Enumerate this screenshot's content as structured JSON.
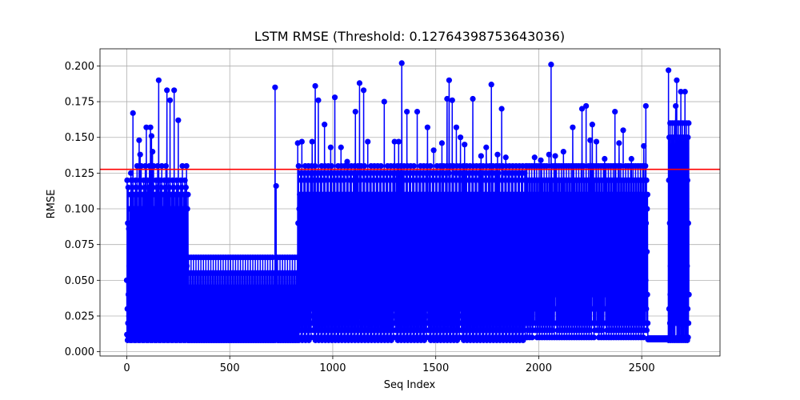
{
  "chart_data": {
    "type": "line",
    "title": "LSTM RMSE (Threshold: 0.12764398753643036)",
    "xlabel": "Seq Index",
    "ylabel": "RMSE",
    "xlim": [
      -130,
      2880
    ],
    "ylim": [
      -0.003,
      0.212
    ],
    "xticks": [
      0,
      500,
      1000,
      1500,
      2000,
      2500
    ],
    "xtick_labels": [
      "0",
      "500",
      "1000",
      "1500",
      "2000",
      "2500"
    ],
    "yticks": [
      0.0,
      0.025,
      0.05,
      0.075,
      0.1,
      0.125,
      0.15,
      0.175,
      0.2
    ],
    "ytick_labels": [
      "0.000",
      "0.025",
      "0.050",
      "0.075",
      "0.100",
      "0.125",
      "0.150",
      "0.175",
      "0.200"
    ],
    "grid": true,
    "threshold": {
      "value": 0.12764398753643036,
      "color": "#ff0000"
    },
    "series": [
      {
        "color": "#0000ff",
        "marker": "circle",
        "segments": [
          {
            "x_start": 0,
            "x_end": 300,
            "pattern": [
              0.05,
              0.012,
              0.12,
              0.03,
              0.008,
              0.09,
              0.02,
              0.115,
              0.04,
              0.01,
              0.13,
              0.025,
              0.06,
              0.015,
              0.1,
              0.035,
              0.008,
              0.11,
              0.045,
              0.018
            ]
          },
          {
            "x_start": 300,
            "x_end": 830,
            "pattern": [
              0.066,
              0.008,
              0.045,
              0.012,
              0.03,
              0.008,
              0.02,
              0.055,
              0.01,
              0.04,
              0.015,
              0.025
            ]
          },
          {
            "x_start": 830,
            "x_end": 1940,
            "pattern": [
              0.12,
              0.01,
              0.09,
              0.03,
              0.13,
              0.05,
              0.008,
              0.1,
              0.02,
              0.065,
              0.11,
              0.015,
              0.08,
              0.04,
              0.125,
              0.025
            ]
          },
          {
            "x_start": 1940,
            "x_end": 2530,
            "pattern": [
              0.11,
              0.02,
              0.13,
              0.05,
              0.01,
              0.09,
              0.03,
              0.12,
              0.015,
              0.07,
              0.1,
              0.04
            ]
          },
          {
            "x_start": 2530,
            "x_end": 2630,
            "pattern": [
              0.009,
              0.0085,
              0.0095,
              0.009
            ]
          },
          {
            "x_start": 2630,
            "x_end": 2730,
            "pattern": [
              0.06,
              0.008,
              0.12,
              0.03,
              0.15,
              0.01,
              0.09,
              0.02,
              0.16,
              0.04
            ]
          }
        ],
        "spikes": [
          [
            10,
            0.086
          ],
          [
            20,
            0.125
          ],
          [
            30,
            0.167
          ],
          [
            45,
            0.115
          ],
          [
            60,
            0.148
          ],
          [
            65,
            0.138
          ],
          [
            95,
            0.157
          ],
          [
            115,
            0.157
          ],
          [
            120,
            0.151
          ],
          [
            125,
            0.14
          ],
          [
            155,
            0.19
          ],
          [
            195,
            0.183
          ],
          [
            210,
            0.176
          ],
          [
            230,
            0.183
          ],
          [
            250,
            0.162
          ],
          [
            720,
            0.185
          ],
          [
            725,
            0.116
          ],
          [
            830,
            0.146
          ],
          [
            850,
            0.147
          ],
          [
            880,
            0.082
          ],
          [
            900,
            0.147
          ],
          [
            915,
            0.186
          ],
          [
            930,
            0.176
          ],
          [
            960,
            0.159
          ],
          [
            990,
            0.143
          ],
          [
            1010,
            0.178
          ],
          [
            1040,
            0.143
          ],
          [
            1070,
            0.133
          ],
          [
            1110,
            0.168
          ],
          [
            1130,
            0.188
          ],
          [
            1150,
            0.183
          ],
          [
            1170,
            0.147
          ],
          [
            1250,
            0.175
          ],
          [
            1300,
            0.147
          ],
          [
            1320,
            0.147
          ],
          [
            1335,
            0.202
          ],
          [
            1360,
            0.168
          ],
          [
            1410,
            0.168
          ],
          [
            1460,
            0.157
          ],
          [
            1490,
            0.141
          ],
          [
            1530,
            0.146
          ],
          [
            1555,
            0.177
          ],
          [
            1565,
            0.19
          ],
          [
            1580,
            0.176
          ],
          [
            1600,
            0.157
          ],
          [
            1620,
            0.15
          ],
          [
            1640,
            0.145
          ],
          [
            1680,
            0.177
          ],
          [
            1720,
            0.137
          ],
          [
            1745,
            0.143
          ],
          [
            1770,
            0.187
          ],
          [
            1800,
            0.138
          ],
          [
            1820,
            0.17
          ],
          [
            1840,
            0.136
          ],
          [
            1980,
            0.136
          ],
          [
            2010,
            0.134
          ],
          [
            2050,
            0.138
          ],
          [
            2060,
            0.201
          ],
          [
            2080,
            0.137
          ],
          [
            2120,
            0.14
          ],
          [
            2165,
            0.157
          ],
          [
            2210,
            0.17
          ],
          [
            2230,
            0.172
          ],
          [
            2250,
            0.148
          ],
          [
            2260,
            0.159
          ],
          [
            2280,
            0.147
          ],
          [
            2320,
            0.135
          ],
          [
            2370,
            0.168
          ],
          [
            2390,
            0.146
          ],
          [
            2410,
            0.155
          ],
          [
            2450,
            0.135
          ],
          [
            2510,
            0.144
          ],
          [
            2520,
            0.172
          ],
          [
            2630,
            0.197
          ],
          [
            2650,
            0.116
          ],
          [
            2665,
            0.172
          ],
          [
            2670,
            0.19
          ],
          [
            2690,
            0.182
          ],
          [
            2710,
            0.182
          ],
          [
            2730,
            0.162
          ],
          [
            2735,
            0.115
          ]
        ]
      }
    ]
  }
}
